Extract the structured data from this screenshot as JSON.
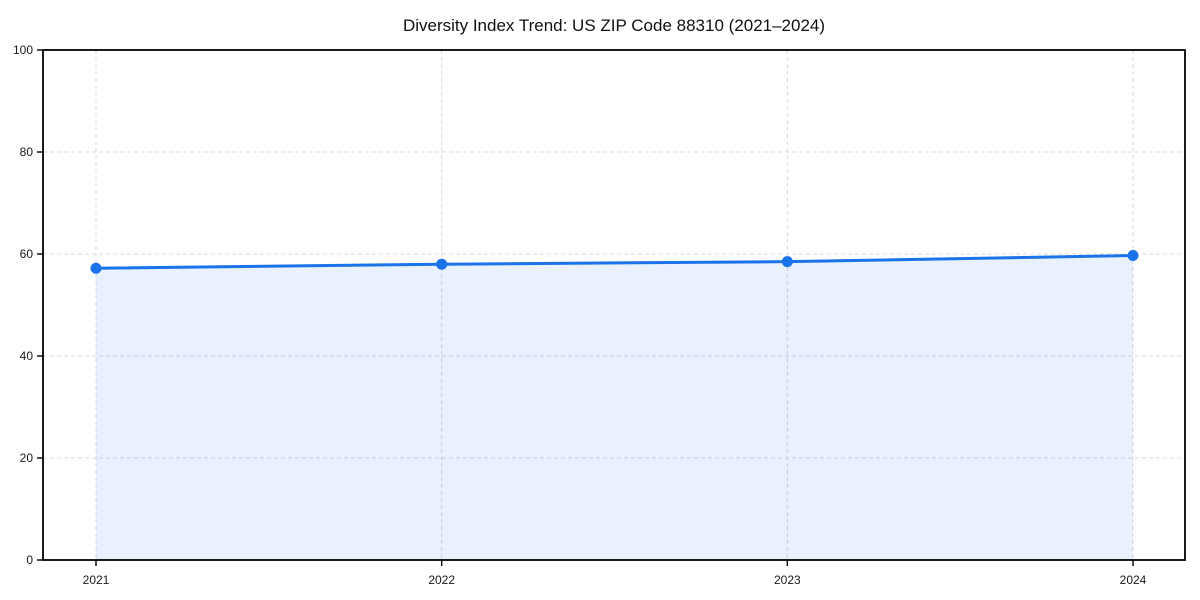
{
  "chart_data": {
    "type": "line",
    "title": "Diversity Index Trend: US ZIP Code 88310 (2021–2024)",
    "x_labels": [
      "2021",
      "2022",
      "2023",
      "2024"
    ],
    "series": [
      {
        "name": "Diversity Index",
        "values": [
          57.2,
          58.0,
          58.5,
          59.7
        ]
      }
    ],
    "xlabel": "",
    "ylabel": "",
    "ylim": [
      0,
      100
    ],
    "yticks": [
      0,
      20,
      40,
      60,
      80,
      100
    ],
    "grid": "dashed, both axes",
    "legend": "none",
    "area_fill": true,
    "marker": "circle",
    "line_color": "#1a73e8",
    "fill_color": "rgba(26,115,232,0.10)",
    "grid_color": "#d9d9d9",
    "axis_color": "#000000",
    "text_color": "#1a1a1a",
    "background_color": "#ffffff"
  }
}
